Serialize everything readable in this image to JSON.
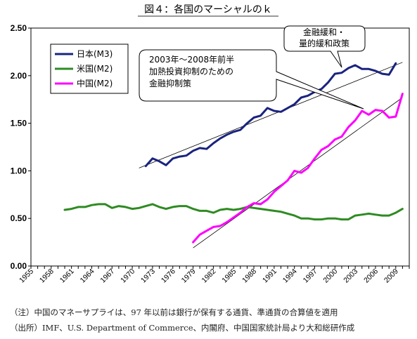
{
  "chart_data": {
    "type": "line",
    "title": "図４：各国のマーシャルのｋ",
    "xlabel": "",
    "ylabel": "",
    "xlim": [
      1955,
      2011
    ],
    "ylim": [
      0,
      2.5
    ],
    "y_ticks": [
      "0.00",
      "0.50",
      "1.00",
      "1.50",
      "2.00",
      "2.50"
    ],
    "x_ticks": [
      "1955",
      "1958",
      "1961",
      "1964",
      "1967",
      "1970",
      "1973",
      "1976",
      "1979",
      "1982",
      "1985",
      "1988",
      "1991",
      "1994",
      "1997",
      "2000",
      "2003",
      "2006",
      "2009"
    ],
    "grid": false,
    "legend_position": "top-left",
    "series": [
      {
        "name": "日本(M3)",
        "color": "#1a237e",
        "x": [
          1972,
          1973,
          1974,
          1975,
          1976,
          1977,
          1978,
          1979,
          1980,
          1981,
          1982,
          1983,
          1984,
          1985,
          1986,
          1987,
          1988,
          1989,
          1990,
          1991,
          1992,
          1993,
          1994,
          1995,
          1996,
          1997,
          1998,
          1999,
          2000,
          2001,
          2002,
          2003,
          2004,
          2005,
          2006,
          2007,
          2008,
          2009
        ],
        "y": [
          1.05,
          1.13,
          1.1,
          1.06,
          1.13,
          1.15,
          1.16,
          1.21,
          1.24,
          1.23,
          1.29,
          1.34,
          1.38,
          1.41,
          1.43,
          1.5,
          1.56,
          1.58,
          1.66,
          1.63,
          1.62,
          1.66,
          1.7,
          1.77,
          1.79,
          1.83,
          1.86,
          1.93,
          2.02,
          2.03,
          2.08,
          2.11,
          2.07,
          2.07,
          2.05,
          2.02,
          2.01,
          2.13
        ]
      },
      {
        "name": "米国(M2)",
        "color": "#2e8b22",
        "x": [
          1960,
          1961,
          1962,
          1963,
          1964,
          1965,
          1966,
          1967,
          1968,
          1969,
          1970,
          1971,
          1972,
          1973,
          1974,
          1975,
          1976,
          1977,
          1978,
          1979,
          1980,
          1981,
          1982,
          1983,
          1984,
          1985,
          1986,
          1987,
          1988,
          1989,
          1990,
          1991,
          1992,
          1993,
          1994,
          1995,
          1996,
          1997,
          1998,
          1999,
          2000,
          2001,
          2002,
          2003,
          2004,
          2005,
          2006,
          2007,
          2008,
          2009,
          2010
        ],
        "y": [
          0.59,
          0.6,
          0.62,
          0.62,
          0.64,
          0.65,
          0.65,
          0.61,
          0.63,
          0.62,
          0.6,
          0.61,
          0.63,
          0.65,
          0.62,
          0.6,
          0.62,
          0.63,
          0.63,
          0.6,
          0.58,
          0.58,
          0.56,
          0.59,
          0.6,
          0.59,
          0.6,
          0.62,
          0.61,
          0.6,
          0.59,
          0.58,
          0.57,
          0.55,
          0.53,
          0.5,
          0.5,
          0.49,
          0.49,
          0.5,
          0.5,
          0.49,
          0.49,
          0.53,
          0.54,
          0.55,
          0.54,
          0.53,
          0.53,
          0.56,
          0.6
        ]
      },
      {
        "name": "中国(M2)",
        "color": "#ff00ff",
        "x": [
          1979,
          1980,
          1981,
          1982,
          1983,
          1984,
          1985,
          1986,
          1987,
          1988,
          1989,
          1990,
          1991,
          1992,
          1993,
          1994,
          1995,
          1996,
          1997,
          1998,
          1999,
          2000,
          2001,
          2002,
          2003,
          2004,
          2005,
          2006,
          2007,
          2008,
          2009,
          2010
        ],
        "y": [
          0.25,
          0.33,
          0.37,
          0.41,
          0.42,
          0.46,
          0.51,
          0.56,
          0.62,
          0.66,
          0.65,
          0.7,
          0.78,
          0.84,
          0.9,
          1.0,
          0.98,
          1.03,
          1.13,
          1.22,
          1.26,
          1.33,
          1.36,
          1.46,
          1.53,
          1.63,
          1.59,
          1.64,
          1.63,
          1.56,
          1.57,
          1.81
        ]
      }
    ],
    "trend_lines": [
      {
        "color": "#000000",
        "x": [
          1971,
          2010
        ],
        "y": [
          1.03,
          2.14
        ]
      },
      {
        "color": "#000000",
        "x": [
          1979,
          2010
        ],
        "y": [
          0.19,
          1.77
        ]
      }
    ],
    "annotations": [
      {
        "lines": [
          "金融緩和・",
          "量的緩和政策"
        ]
      },
      {
        "lines": [
          "2003年～2008年前半",
          "加熱投資抑制のための",
          "金融抑制策"
        ]
      }
    ]
  },
  "notes": {
    "line1": "（注）中国のマネーサプライは、97 年以前は銀行が保有する通貨、準通貨の合算値を適用",
    "line2": "（出所）IMF、U.S. Department of Commerce、内閣府、中国国家統計局より大和総研作成"
  }
}
